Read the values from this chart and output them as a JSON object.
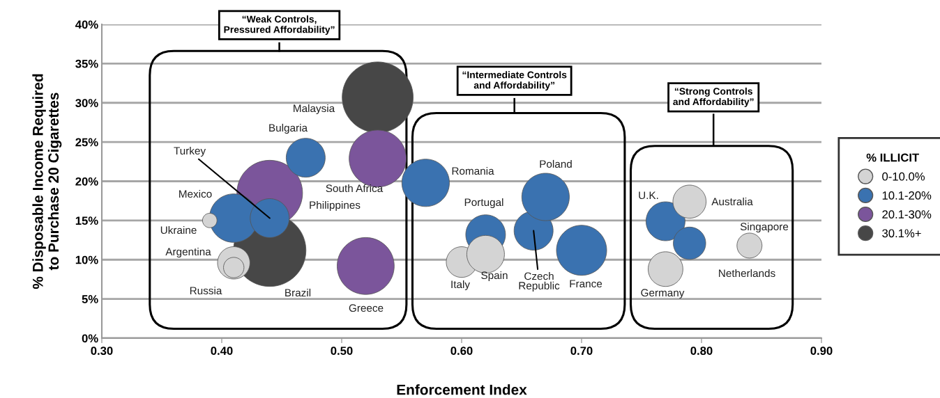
{
  "chart_data": {
    "type": "bubble",
    "xlabel": "Enforcement Index",
    "ylabel": "% Disposable Income Required\nto Purchase 20 Cigarettes",
    "legend_title": "% ILLICIT",
    "legend": "right",
    "grid": "y",
    "xlim": [
      0.3,
      0.9
    ],
    "xticks": [
      {
        "value": 0.3,
        "label": "0.30"
      },
      {
        "value": 0.4,
        "label": "0.40"
      },
      {
        "value": 0.5,
        "label": "0.50"
      },
      {
        "value": 0.6,
        "label": "0.60"
      },
      {
        "value": 0.7,
        "label": "0.70"
      },
      {
        "value": 0.8,
        "label": "0.80"
      },
      {
        "value": 0.9,
        "label": "0.90"
      }
    ],
    "ylim": [
      0,
      40
    ],
    "yticks": [
      {
        "value": 0,
        "label": "0%"
      },
      {
        "value": 5,
        "label": "5%"
      },
      {
        "value": 10,
        "label": "10%"
      },
      {
        "value": 15,
        "label": "15%"
      },
      {
        "value": 20,
        "label": "20%"
      },
      {
        "value": 25,
        "label": "25%"
      },
      {
        "value": 30,
        "label": "30%"
      },
      {
        "value": 35,
        "label": "35%"
      },
      {
        "value": 40,
        "label": "40%"
      }
    ],
    "series": [
      {
        "name": "0-10.0%",
        "color": "#d4d4d4",
        "x": [
          0.39,
          0.41,
          0.41,
          0.6,
          0.62,
          0.79,
          0.77,
          0.84
        ],
        "values": [
          15.0,
          9.6,
          9.0,
          9.7,
          10.7,
          17.4,
          8.8,
          11.8
        ],
        "sizes": [
          0.04,
          0.2,
          0.08,
          0.18,
          0.27,
          0.21,
          0.23,
          0.12
        ]
      },
      {
        "name": "10.1-20%",
        "color": "#3a72b0",
        "x": [
          0.41,
          0.44,
          0.47,
          0.57,
          0.62,
          0.66,
          0.67,
          0.7,
          0.77,
          0.79
        ],
        "values": [
          15.3,
          15.3,
          23.0,
          19.8,
          13.2,
          13.7,
          18.0,
          11.2,
          14.9,
          12.1
        ],
        "sizes": [
          0.45,
          0.29,
          0.29,
          0.43,
          0.3,
          0.29,
          0.43,
          0.48,
          0.29,
          0.2
        ]
      },
      {
        "name": "20.1-30%",
        "color": "#7b559b",
        "x": [
          0.44,
          0.53,
          0.52
        ],
        "values": [
          18.5,
          22.9,
          9.2
        ],
        "sizes": [
          0.82,
          0.62,
          0.62
        ]
      },
      {
        "name": "30.1%+",
        "color": "#474747",
        "x": [
          0.53,
          0.44
        ],
        "values": [
          30.7,
          11.2
        ],
        "sizes": [
          0.96,
          1
        ]
      }
    ],
    "annotations": [
      "Ukraine",
      "Argentina",
      "Russia",
      "Italy",
      "Spain",
      "Australia",
      "Germany",
      "Singapore",
      "Mexico",
      {
        "text": "Turkey",
        "x": 0.44,
        "y": 15.3
      },
      "Bulgaria",
      "Romania",
      "Portugal",
      {
        "text": "Czech\nRepublic",
        "x": 0.66,
        "y": 13.7
      },
      "Poland",
      "France",
      "U.K.",
      "Netherlands",
      "Philippines",
      "South Africa",
      "Greece",
      "Malaysia",
      "Brazil",
      "“Weak Controls,\nPressured Affordability”",
      "“Intermediate Controls\nand Affordability”",
      "“Strong Controls\nand Affordability”"
    ]
  }
}
